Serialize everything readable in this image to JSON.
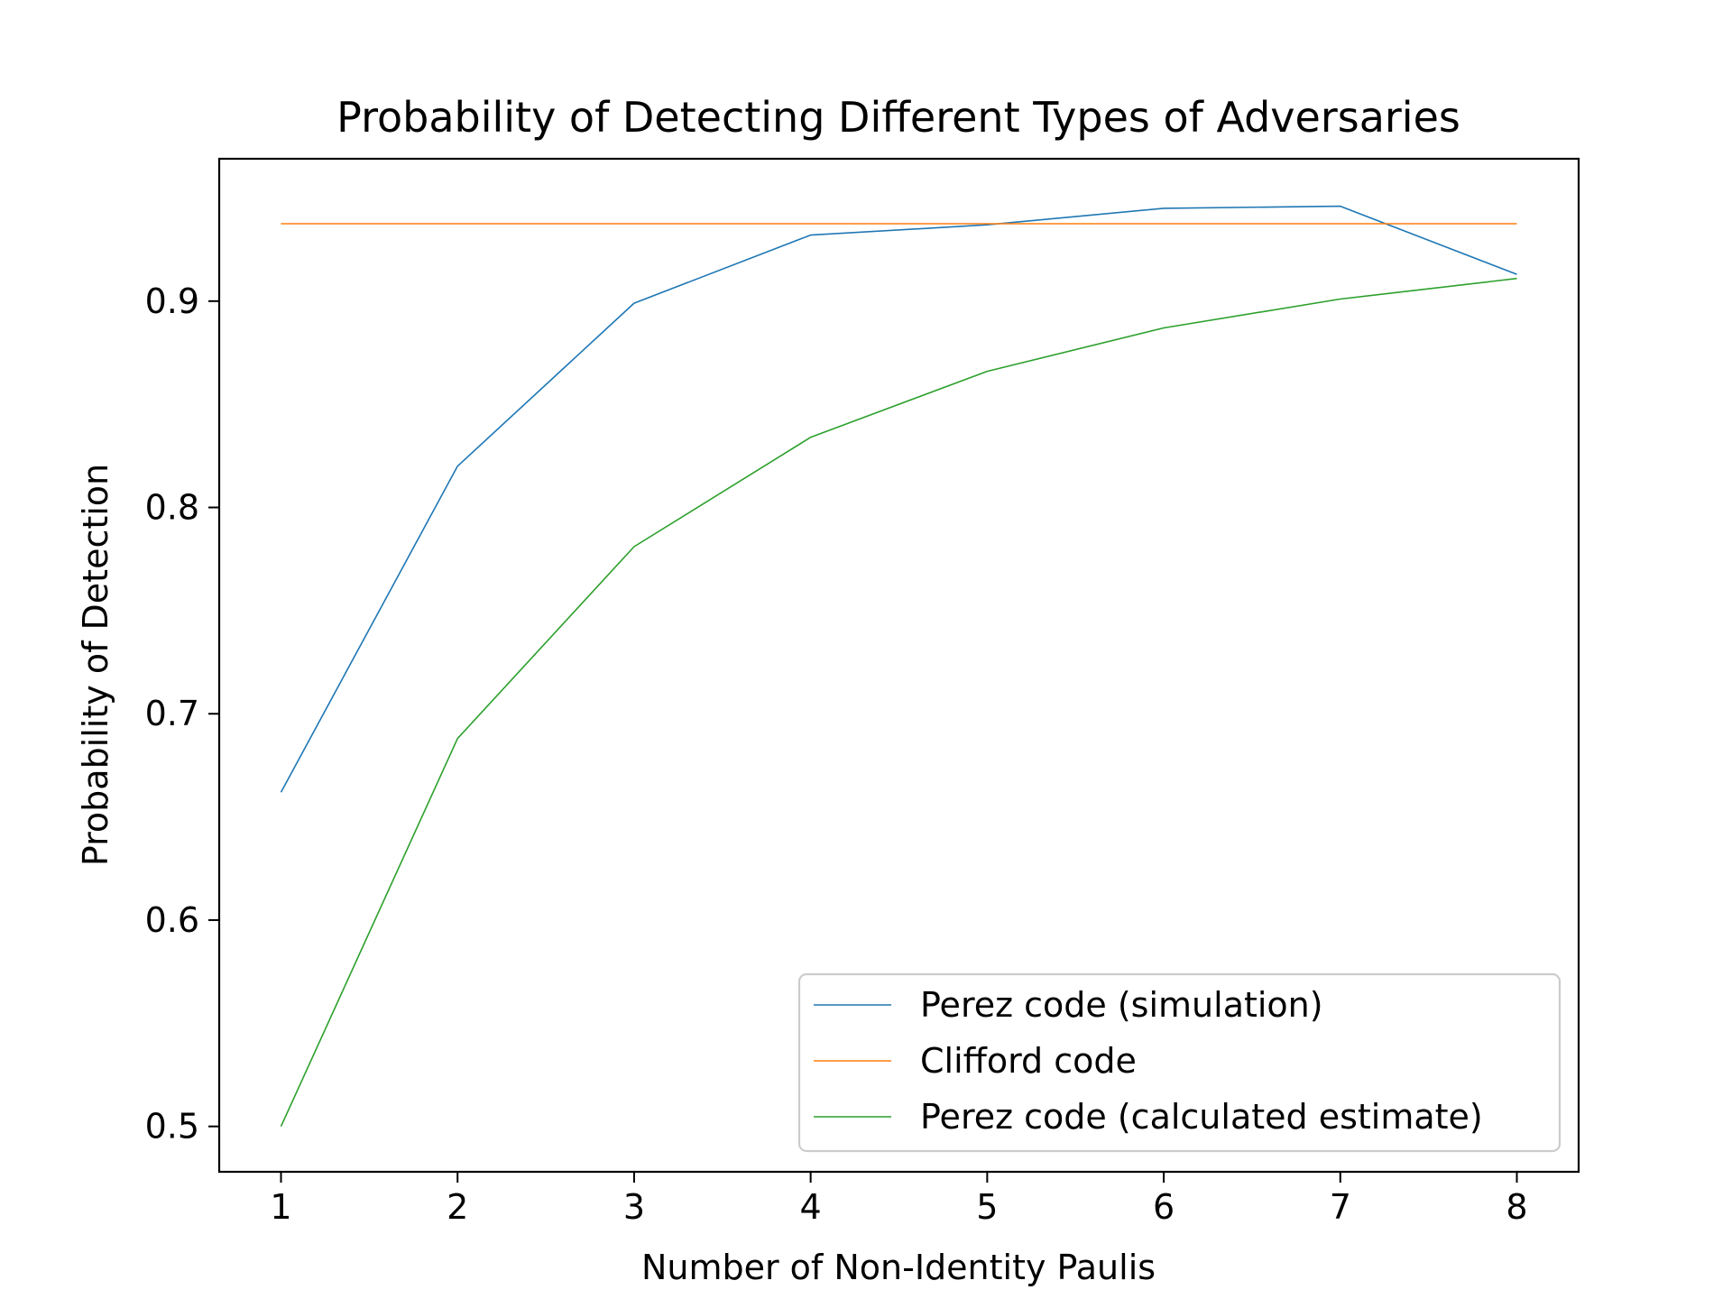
{
  "chart_data": {
    "type": "line",
    "title": "Probability of Detecting Different Types of Adversaries",
    "xlabel": "Number of Non-Identity Paulis",
    "ylabel": "Probability of Detection",
    "xlim": [
      0.65,
      8.35
    ],
    "ylim": [
      0.478,
      0.969
    ],
    "xticks": [
      1,
      2,
      3,
      4,
      5,
      6,
      7,
      8
    ],
    "yticks": [
      0.5,
      0.6,
      0.7,
      0.8,
      0.9
    ],
    "ytick_labels": [
      "0.5",
      "0.6",
      "0.7",
      "0.8",
      "0.9"
    ],
    "grid": false,
    "legend_position": "lower-right",
    "series": [
      {
        "name": "Perez code (simulation)",
        "color": "#1f77b4",
        "x": [
          1,
          2,
          3,
          4,
          5,
          6,
          7,
          8
        ],
        "y": [
          0.662,
          0.82,
          0.899,
          0.932,
          0.937,
          0.945,
          0.946,
          0.913
        ]
      },
      {
        "name": "Clifford code",
        "color": "#ff7f0e",
        "x": [
          1,
          2,
          3,
          4,
          5,
          6,
          7,
          8
        ],
        "y": [
          0.9375,
          0.9375,
          0.9375,
          0.9375,
          0.9375,
          0.9375,
          0.9375,
          0.9375
        ]
      },
      {
        "name": "Perez code (calculated estimate)",
        "color": "#2ca02c",
        "x": [
          1,
          2,
          3,
          4,
          5,
          6,
          7,
          8
        ],
        "y": [
          0.5,
          0.688,
          0.781,
          0.834,
          0.866,
          0.887,
          0.901,
          0.911
        ]
      }
    ]
  }
}
